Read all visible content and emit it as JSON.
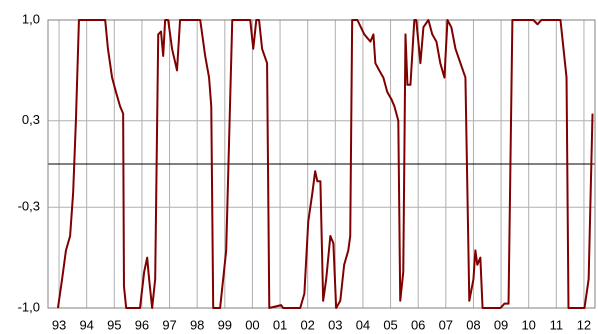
{
  "chart_data": {
    "type": "line",
    "x": [
      1992.96,
      1993.11,
      1993.25,
      1993.4,
      1993.51,
      1993.61,
      1993.72,
      1994.12,
      1994.67,
      1994.77,
      1994.92,
      1995.06,
      1995.21,
      1995.32,
      1995.35,
      1995.43,
      1995.93,
      1996.08,
      1996.19,
      1996.26,
      1996.37,
      1996.48,
      1996.59,
      1996.69,
      1996.77,
      1996.84,
      1996.95,
      1997.09,
      1997.27,
      1997.38,
      1998.11,
      1998.29,
      1998.43,
      1998.51,
      1998.58,
      1998.83,
      1999.05,
      1999.27,
      1999.92,
      2000.03,
      2000.14,
      2000.24,
      2000.35,
      2000.53,
      2000.61,
      2001.04,
      2001.11,
      2001.73,
      2001.88,
      2002.02,
      2002.17,
      2002.27,
      2002.35,
      2002.46,
      2002.56,
      2002.67,
      2002.82,
      2002.93,
      2003.03,
      2003.18,
      2003.32,
      2003.47,
      2003.54,
      2003.61,
      2003.8,
      2004.05,
      2004.27,
      2004.38,
      2004.45,
      2004.59,
      2004.74,
      2004.88,
      2005.03,
      2005.14,
      2005.28,
      2005.35,
      2005.46,
      2005.54,
      2005.61,
      2005.72,
      2005.86,
      2005.93,
      2006.08,
      2006.19,
      2006.37,
      2006.51,
      2006.66,
      2006.8,
      2006.95,
      2007.06,
      2007.2,
      2007.35,
      2007.53,
      2007.71,
      2007.85,
      2008.0,
      2008.07,
      2008.14,
      2008.25,
      2008.33,
      2008.98,
      2009.12,
      2009.27,
      2009.41,
      2010.17,
      2010.32,
      2010.46,
      2011.15,
      2011.37,
      2011.44,
      2012.02,
      2012.17,
      2012.31
    ],
    "series": [
      {
        "color": "#800000",
        "values": [
          -1.0,
          -0.8,
          -0.6,
          -0.5,
          -0.2,
          0.3,
          1.0,
          1.0,
          1.0,
          0.8,
          0.6,
          0.5,
          0.4,
          0.35,
          -0.85,
          -1.0,
          -1.0,
          -0.75,
          -0.65,
          -0.8,
          -1.0,
          -0.8,
          0.9,
          0.92,
          0.75,
          1.0,
          1.0,
          0.8,
          0.65,
          1.0,
          1.0,
          0.75,
          0.6,
          0.4,
          -1.0,
          -1.0,
          -0.6,
          1.0,
          1.0,
          0.8,
          1.0,
          1.0,
          0.8,
          0.7,
          -1.0,
          -0.98,
          -1.0,
          -1.0,
          -0.9,
          -0.4,
          -0.2,
          -0.05,
          -0.12,
          -0.12,
          -0.95,
          -0.8,
          -0.5,
          -0.55,
          -1.0,
          -0.95,
          -0.7,
          -0.6,
          -0.5,
          1.0,
          1.0,
          0.9,
          0.85,
          0.9,
          0.7,
          0.65,
          0.6,
          0.5,
          0.45,
          0.4,
          0.3,
          -0.95,
          -0.75,
          0.9,
          0.55,
          0.55,
          1.0,
          1.0,
          0.7,
          0.95,
          1.0,
          0.9,
          0.85,
          0.7,
          0.6,
          1.0,
          0.95,
          0.8,
          0.7,
          0.6,
          -0.95,
          -0.8,
          -0.6,
          -0.7,
          -0.65,
          -1.0,
          -1.0,
          -0.97,
          -0.97,
          1.0,
          1.0,
          0.97,
          1.0,
          1.0,
          0.6,
          -1.0,
          -1.0,
          -0.8,
          0.35
        ]
      }
    ],
    "xlim": [
      1992.6,
      2012.4
    ],
    "xticks": [
      {
        "value": 1993,
        "label": "93"
      },
      {
        "value": 1994,
        "label": "94"
      },
      {
        "value": 1995,
        "label": "95"
      },
      {
        "value": 1996,
        "label": "96"
      },
      {
        "value": 1997,
        "label": "97"
      },
      {
        "value": 1998,
        "label": "98"
      },
      {
        "value": 1999,
        "label": "99"
      },
      {
        "value": 2000,
        "label": "00"
      },
      {
        "value": 2001,
        "label": "01"
      },
      {
        "value": 2002,
        "label": "02"
      },
      {
        "value": 2003,
        "label": "03"
      },
      {
        "value": 2004,
        "label": "04"
      },
      {
        "value": 2005,
        "label": "05"
      },
      {
        "value": 2006,
        "label": "06"
      },
      {
        "value": 2007,
        "label": "07"
      },
      {
        "value": 2008,
        "label": "08"
      },
      {
        "value": 2009,
        "label": "09"
      },
      {
        "value": 2010,
        "label": "10"
      },
      {
        "value": 2011,
        "label": "11"
      },
      {
        "value": 2012,
        "label": "12"
      }
    ],
    "ylim": [
      -1.0,
      1.0
    ],
    "yticks": [
      {
        "value": -1.0,
        "label": "-1,0"
      },
      {
        "value": -0.3,
        "label": "-0,3"
      },
      {
        "value": 0.3,
        "label": "0,3"
      },
      {
        "value": 1.0,
        "label": "1,0"
      }
    ],
    "grid": true
  }
}
